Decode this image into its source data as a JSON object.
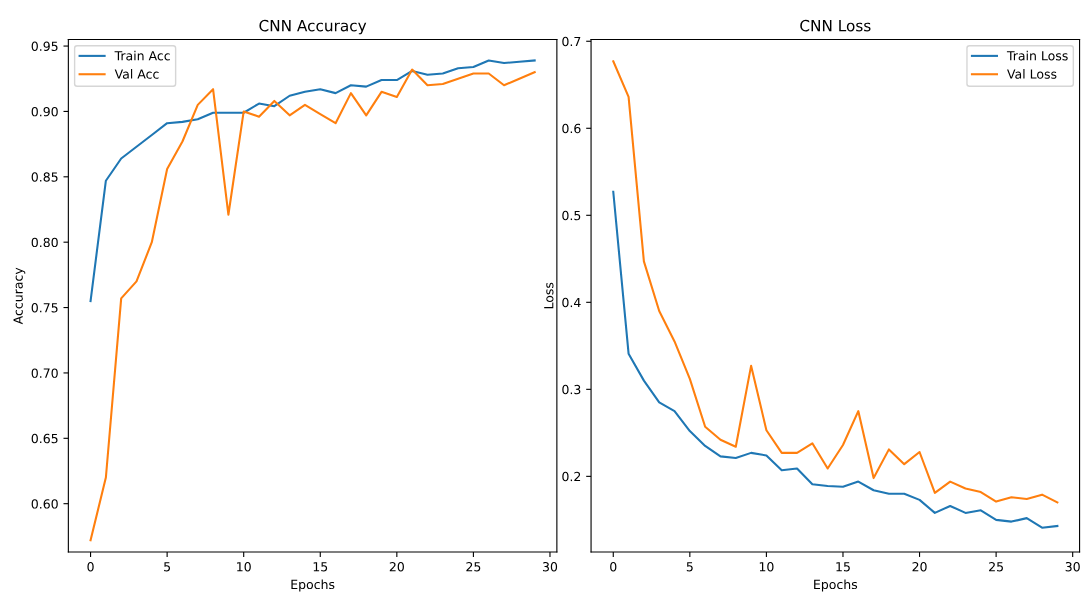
{
  "chart_data": [
    {
      "type": "line",
      "title": "CNN Accuracy",
      "xlabel": "Epochs",
      "ylabel": "Accuracy",
      "x": [
        0,
        1,
        2,
        3,
        4,
        5,
        6,
        7,
        8,
        9,
        10,
        11,
        12,
        13,
        14,
        15,
        16,
        17,
        18,
        19,
        20,
        21,
        22,
        23,
        24,
        25,
        26,
        27,
        28,
        29
      ],
      "series": [
        {
          "name": "Train Acc",
          "color": "#1f77b4",
          "values": [
            0.755,
            0.847,
            0.864,
            0.873,
            0.882,
            0.891,
            0.892,
            0.894,
            0.899,
            0.899,
            0.899,
            0.906,
            0.904,
            0.912,
            0.915,
            0.917,
            0.914,
            0.92,
            0.919,
            0.924,
            0.924,
            0.931,
            0.928,
            0.929,
            0.933,
            0.934,
            0.939,
            0.937,
            0.938,
            0.939
          ]
        },
        {
          "name": "Val Acc",
          "color": "#ff7f0e",
          "values": [
            0.572,
            0.62,
            0.757,
            0.77,
            0.8,
            0.856,
            0.877,
            0.905,
            0.917,
            0.821,
            0.9,
            0.896,
            0.908,
            0.897,
            0.905,
            0.898,
            0.891,
            0.914,
            0.897,
            0.915,
            0.911,
            0.932,
            0.92,
            0.921,
            0.925,
            0.929,
            0.929,
            0.92,
            0.925,
            0.93
          ]
        }
      ],
      "xlim": [
        -1.45,
        30.45
      ],
      "xticks": [
        0,
        5,
        10,
        15,
        20,
        25,
        30
      ],
      "ylim": [
        0.563,
        0.955
      ],
      "yticks": [
        {
          "value": 0.6,
          "label": "0.60"
        },
        {
          "value": 0.65,
          "label": "0.65"
        },
        {
          "value": 0.7,
          "label": "0.70"
        },
        {
          "value": 0.75,
          "label": "0.75"
        },
        {
          "value": 0.8,
          "label": "0.80"
        },
        {
          "value": 0.85,
          "label": "0.85"
        },
        {
          "value": 0.9,
          "label": "0.90"
        },
        {
          "value": 0.95,
          "label": "0.95"
        }
      ],
      "legend": "top left",
      "grid": false,
      "line_style": "solid"
    },
    {
      "type": "line",
      "title": "CNN Loss",
      "xlabel": "Epochs",
      "ylabel": "Loss",
      "x": [
        0,
        1,
        2,
        3,
        4,
        5,
        6,
        7,
        8,
        9,
        10,
        11,
        12,
        13,
        14,
        15,
        16,
        17,
        18,
        19,
        20,
        21,
        22,
        23,
        24,
        25,
        26,
        27,
        28,
        29
      ],
      "series": [
        {
          "name": "Train Loss",
          "color": "#1f77b4",
          "values": [
            0.527,
            0.341,
            0.31,
            0.285,
            0.275,
            0.252,
            0.235,
            0.223,
            0.221,
            0.227,
            0.224,
            0.207,
            0.209,
            0.191,
            0.189,
            0.188,
            0.194,
            0.184,
            0.18,
            0.18,
            0.173,
            0.158,
            0.166,
            0.158,
            0.161,
            0.15,
            0.148,
            0.152,
            0.141,
            0.143
          ]
        },
        {
          "name": "Val Loss",
          "color": "#ff7f0e",
          "values": [
            0.677,
            0.636,
            0.447,
            0.39,
            0.355,
            0.312,
            0.257,
            0.242,
            0.234,
            0.327,
            0.253,
            0.227,
            0.227,
            0.238,
            0.209,
            0.236,
            0.275,
            0.198,
            0.231,
            0.214,
            0.228,
            0.181,
            0.194,
            0.186,
            0.182,
            0.171,
            0.176,
            0.174,
            0.179,
            0.17
          ]
        }
      ],
      "xlim": [
        -1.45,
        30.45
      ],
      "xticks": [
        0,
        5,
        10,
        15,
        20,
        25,
        30
      ],
      "ylim": [
        0.113,
        0.702
      ],
      "yticks": [
        0.2,
        0.3,
        0.4,
        0.5,
        0.6,
        0.7
      ],
      "legend": "top right",
      "grid": false,
      "line_style": "solid"
    }
  ]
}
